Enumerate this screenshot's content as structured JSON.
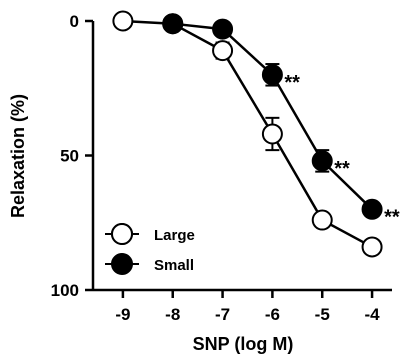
{
  "chart_data": {
    "type": "line",
    "title": "",
    "xlabel": "SNP (log M)",
    "ylabel": "Relaxation (%)",
    "x": [
      -9,
      -8,
      -7,
      -6,
      -5,
      -4
    ],
    "x_ticks": [
      -9,
      -8,
      -7,
      -6,
      -5,
      -4
    ],
    "x_tick_labels": [
      "-9",
      "-8",
      "-7",
      "-6",
      "-5",
      "-4"
    ],
    "y_ticks": [
      0,
      50,
      100
    ],
    "y_tick_labels": [
      "0",
      "50",
      "100"
    ],
    "xlim": [
      -9.6,
      -3.6
    ],
    "ylim": [
      0,
      100
    ],
    "y_inverted": true,
    "grid": false,
    "legend_position": "bottom-left",
    "series": [
      {
        "name": "Large",
        "marker": "open-circle",
        "color": "#000000",
        "fill": "#ffffff",
        "values": [
          0,
          1,
          11,
          42,
          74,
          84
        ],
        "errors": [
          0,
          0,
          3,
          6,
          0,
          0
        ],
        "annotations": [
          "",
          "",
          "",
          "",
          "",
          ""
        ]
      },
      {
        "name": "Small",
        "marker": "filled-circle",
        "color": "#000000",
        "fill": "#000000",
        "values": [
          null,
          1,
          3,
          20,
          52,
          70
        ],
        "errors": [
          null,
          0,
          0,
          4,
          4,
          0
        ],
        "annotations": [
          "",
          "",
          "",
          "**",
          "**",
          "**"
        ]
      }
    ]
  }
}
